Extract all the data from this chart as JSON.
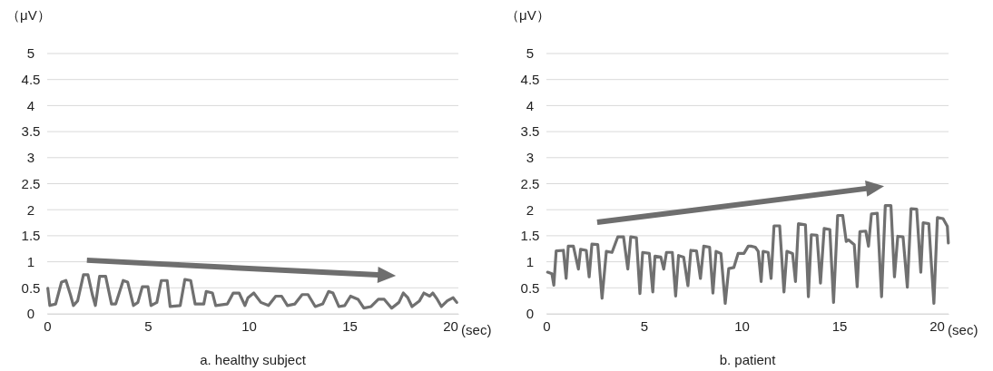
{
  "chart_data": [
    {
      "type": "line",
      "ylabel": "（μV）",
      "xlabel": "a. healthy subject",
      "annotations": [
        "(sec)"
      ],
      "xlim": [
        0,
        20.4
      ],
      "xticks": [
        0,
        5,
        10,
        15,
        20
      ],
      "ylim": [
        0,
        5
      ],
      "yticks": [
        0,
        0.5,
        1,
        1.5,
        2,
        2.5,
        3,
        3.5,
        4,
        4.5,
        5
      ],
      "grid": "y",
      "marker": "none",
      "line_style": "solid",
      "series": [
        {
          "color": "#707070",
          "x": [
            0.03,
            0.13,
            0.42,
            0.71,
            0.93,
            1.15,
            1.3,
            1.51,
            1.8,
            2.02,
            2.24,
            2.39,
            2.6,
            2.9,
            3.19,
            3.4,
            3.77,
            3.99,
            4.28,
            4.5,
            4.72,
            5.0,
            5.15,
            5.44,
            5.66,
            5.95,
            6.1,
            6.6,
            6.83,
            7.12,
            7.34,
            7.77,
            7.89,
            8.2,
            8.36,
            8.94,
            9.23,
            9.52,
            9.81,
            9.96,
            10.25,
            10.6,
            10.98,
            11.34,
            11.63,
            11.92,
            12.29,
            12.65,
            12.94,
            13.3,
            13.67,
            13.96,
            14.18,
            14.47,
            14.76,
            15.05,
            15.42,
            15.71,
            16.07,
            16.43,
            16.72,
            17.09,
            17.45,
            17.67,
            17.89,
            18.1,
            18.47,
            18.69,
            18.98,
            19.13,
            19.35,
            19.56,
            19.85,
            20.14,
            20.32
          ],
          "values": [
            0.49,
            0.16,
            0.19,
            0.61,
            0.64,
            0.37,
            0.16,
            0.25,
            0.75,
            0.75,
            0.37,
            0.16,
            0.72,
            0.72,
            0.19,
            0.19,
            0.64,
            0.61,
            0.16,
            0.22,
            0.52,
            0.52,
            0.16,
            0.22,
            0.64,
            0.64,
            0.14,
            0.16,
            0.66,
            0.64,
            0.19,
            0.19,
            0.43,
            0.4,
            0.16,
            0.19,
            0.4,
            0.4,
            0.16,
            0.31,
            0.4,
            0.22,
            0.16,
            0.34,
            0.34,
            0.16,
            0.19,
            0.37,
            0.37,
            0.14,
            0.19,
            0.43,
            0.4,
            0.14,
            0.16,
            0.34,
            0.28,
            0.11,
            0.14,
            0.28,
            0.28,
            0.11,
            0.22,
            0.4,
            0.31,
            0.14,
            0.25,
            0.4,
            0.34,
            0.4,
            0.28,
            0.14,
            0.25,
            0.31,
            0.22
          ]
        }
      ]
    },
    {
      "type": "line",
      "ylabel": "（μV）",
      "xlabel": "b. patient",
      "annotations": [
        "(sec)"
      ],
      "xlim": [
        0,
        20.6
      ],
      "xticks": [
        0,
        5,
        10,
        15,
        20
      ],
      "ylim": [
        0,
        5
      ],
      "yticks": [
        0,
        0.5,
        1,
        1.5,
        2,
        2.5,
        3,
        3.5,
        4,
        4.5,
        5
      ],
      "grid": "y",
      "marker": "none",
      "line_style": "solid",
      "series": [
        {
          "color": "#707070",
          "x": [
            0.06,
            0.28,
            0.38,
            0.5,
            0.87,
            1.01,
            1.12,
            1.38,
            1.64,
            1.75,
            2.04,
            2.19,
            2.33,
            2.63,
            2.85,
            3.07,
            3.36,
            3.66,
            3.95,
            4.17,
            4.32,
            4.61,
            4.79,
            4.93,
            5.27,
            5.45,
            5.56,
            5.86,
            6.01,
            6.15,
            6.45,
            6.62,
            6.77,
            7.03,
            7.25,
            7.4,
            7.69,
            7.89,
            8.06,
            8.36,
            8.53,
            8.69,
            8.94,
            9.16,
            9.34,
            9.6,
            9.82,
            10.12,
            10.34,
            10.48,
            10.7,
            10.85,
            11.0,
            11.1,
            11.36,
            11.51,
            11.66,
            11.95,
            12.17,
            12.32,
            12.61,
            12.76,
            12.91,
            13.27,
            13.42,
            13.57,
            13.86,
            14.04,
            14.23,
            14.52,
            14.71,
            14.92,
            15.18,
            15.36,
            15.48,
            15.77,
            15.92,
            16.06,
            16.36,
            16.5,
            16.65,
            16.95,
            17.17,
            17.36,
            17.65,
            17.83,
            18.0,
            18.27,
            18.49,
            18.68,
            18.97,
            19.18,
            19.3,
            19.59,
            19.85,
            20.03,
            20.32,
            20.54,
            20.59
          ],
          "values": [
            0.8,
            0.77,
            0.55,
            1.21,
            1.22,
            0.68,
            1.3,
            1.3,
            0.86,
            1.24,
            1.22,
            0.71,
            1.34,
            1.33,
            0.3,
            1.2,
            1.18,
            1.48,
            1.48,
            0.86,
            1.48,
            1.46,
            0.39,
            1.18,
            1.16,
            0.42,
            1.11,
            1.09,
            0.86,
            1.18,
            1.18,
            0.34,
            1.12,
            1.09,
            0.54,
            1.22,
            1.21,
            0.68,
            1.3,
            1.28,
            0.4,
            1.2,
            1.16,
            0.2,
            0.87,
            0.89,
            1.16,
            1.16,
            1.3,
            1.3,
            1.28,
            1.2,
            0.62,
            1.2,
            1.18,
            0.68,
            1.69,
            1.69,
            0.42,
            1.2,
            1.16,
            0.62,
            1.73,
            1.71,
            0.33,
            1.52,
            1.51,
            0.59,
            1.64,
            1.62,
            0.22,
            1.89,
            1.89,
            1.39,
            1.42,
            1.33,
            0.52,
            1.58,
            1.59,
            1.3,
            1.92,
            1.93,
            0.33,
            2.08,
            2.08,
            0.71,
            1.49,
            1.48,
            0.51,
            2.02,
            2.01,
            0.8,
            1.75,
            1.73,
            0.2,
            1.85,
            1.83,
            1.68,
            1.36
          ]
        }
      ]
    }
  ]
}
